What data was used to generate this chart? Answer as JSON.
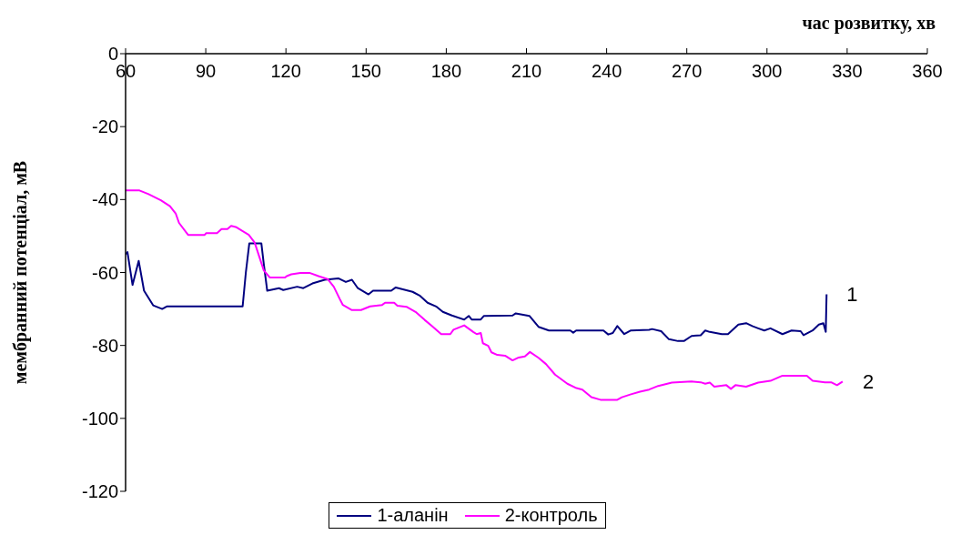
{
  "chart_data": {
    "type": "line",
    "xlabel": "час розвитку, хв",
    "ylabel": "мембранний потенціал, мВ",
    "xlim": [
      60,
      360
    ],
    "xticks": [
      60,
      90,
      120,
      150,
      180,
      210,
      240,
      270,
      300,
      330,
      360
    ],
    "ylim": [
      -120,
      0
    ],
    "yticks": [
      0,
      -20,
      -40,
      -60,
      -80,
      -100,
      -120
    ],
    "grid": false,
    "legend": "bottom",
    "marker": "none",
    "line_style": "solid",
    "annotations": [
      "1",
      "2"
    ],
    "series": [
      {
        "name": "1-аланін",
        "color": "#000080",
        "x": [
          60,
          60.7,
          62.6,
          64.9,
          66.9,
          70.3,
          73.7,
          75.4,
          103.8,
          105,
          106.3,
          110.8,
          111.7,
          113,
          117.4,
          119,
          124.2,
          126.5,
          129.9,
          134.5,
          139.6,
          142.4,
          144.7,
          146.9,
          150.9,
          152.6,
          159.4,
          161.1,
          167.4,
          170.2,
          173,
          176.4,
          178.7,
          182.1,
          186.7,
          188.4,
          189.5,
          192.9,
          194.1,
          204.8,
          206,
          211.1,
          214.5,
          218.4,
          226.4,
          227.5,
          228.6,
          238.8,
          240.6,
          242.3,
          244,
          246.6,
          249.1,
          255.9,
          257,
          260.4,
          263.3,
          266.7,
          268.9,
          271.8,
          275.2,
          276.9,
          278.6,
          283.1,
          285.4,
          289.3,
          292.2,
          294.5,
          296.7,
          299,
          301.3,
          305.8,
          309.2,
          312.6,
          313.7,
          317.1,
          319.4,
          321.1,
          322,
          322.3
        ],
        "values": [
          -55,
          -54.4,
          -63.4,
          -56.8,
          -65,
          -69,
          -70,
          -69.3,
          -69.3,
          -60,
          -52,
          -52,
          -57.6,
          -65,
          -64.3,
          -64.8,
          -63.9,
          -64.3,
          -63,
          -62,
          -61.6,
          -62.6,
          -62,
          -64.3,
          -66,
          -65,
          -65,
          -64.1,
          -65.3,
          -66.4,
          -68.3,
          -69.4,
          -70.8,
          -71.8,
          -72.9,
          -71.9,
          -72.9,
          -72.9,
          -71.9,
          -71.8,
          -71.2,
          -71.9,
          -74.9,
          -75.9,
          -75.9,
          -76.5,
          -75.9,
          -75.9,
          -77,
          -76.6,
          -74.7,
          -76.9,
          -75.9,
          -75.7,
          -75.5,
          -76.1,
          -78.3,
          -78.8,
          -78.8,
          -77.4,
          -77.2,
          -75.9,
          -76.3,
          -76.9,
          -76.9,
          -74.3,
          -73.9,
          -74.7,
          -75.3,
          -75.9,
          -75.3,
          -76.9,
          -75.9,
          -76.1,
          -77.2,
          -75.9,
          -74.3,
          -73.9,
          -76.3,
          -66
        ]
      },
      {
        "name": "2-контроль",
        "color": "#ff00ff",
        "x": [
          60,
          65.2,
          68.6,
          73.2,
          76.6,
          78.8,
          80,
          83.4,
          89.6,
          90.2,
          94.2,
          95.9,
          98.1,
          99.5,
          101.5,
          106.1,
          108.3,
          110,
          111.7,
          114,
          119.6,
          120.3,
          122,
          125.4,
          128.8,
          132.2,
          135.6,
          137.9,
          140.1,
          141.3,
          144.7,
          148.1,
          151.5,
          156,
          157.1,
          160.5,
          161.7,
          165.1,
          168.5,
          171.9,
          174.7,
          178.1,
          181.5,
          182.7,
          186.7,
          190.1,
          191.4,
          192.9,
          193.7,
          195.7,
          196.9,
          199.1,
          202,
          204.8,
          207.1,
          209.4,
          211.3,
          214.5,
          217.3,
          220.7,
          225.3,
          228.7,
          230.9,
          234.3,
          237.7,
          244,
          245.7,
          249.1,
          252.5,
          255.9,
          259.3,
          264.4,
          271.8,
          275.2,
          276.9,
          278.6,
          280.3,
          284.8,
          286.5,
          288.2,
          292.2,
          296.7,
          301.3,
          305.8,
          314.9,
          317.1,
          321.7,
          324,
          326.2,
          328.3
        ],
        "values": [
          -37.5,
          -37.5,
          -38.5,
          -40.2,
          -41.8,
          -43.9,
          -46.4,
          -49.7,
          -49.7,
          -49.2,
          -49.2,
          -48.1,
          -48.1,
          -47.2,
          -47.6,
          -49.7,
          -51.8,
          -55.6,
          -59.4,
          -61.4,
          -61.4,
          -61,
          -60.5,
          -60.1,
          -60.1,
          -61,
          -61.8,
          -63.9,
          -67.2,
          -68.9,
          -70.3,
          -70.3,
          -69.3,
          -68.9,
          -68.3,
          -68.3,
          -69.1,
          -69.4,
          -70.8,
          -73,
          -74.7,
          -76.9,
          -76.9,
          -75.7,
          -74.5,
          -76.3,
          -76.9,
          -76.6,
          -79.4,
          -80.1,
          -81.9,
          -82.6,
          -82.8,
          -84.1,
          -83.3,
          -83,
          -81.8,
          -83.4,
          -85.1,
          -88,
          -90.5,
          -91.7,
          -92.1,
          -94.2,
          -94.9,
          -94.9,
          -94.2,
          -93.4,
          -92.7,
          -92.1,
          -91.1,
          -90.2,
          -89.9,
          -90.1,
          -90.5,
          -90.2,
          -91.3,
          -90.9,
          -91.9,
          -90.9,
          -91.3,
          -90.2,
          -89.7,
          -88.3,
          -88.3,
          -89.7,
          -90.1,
          -90.1,
          -90.9,
          -89.9
        ]
      }
    ]
  }
}
